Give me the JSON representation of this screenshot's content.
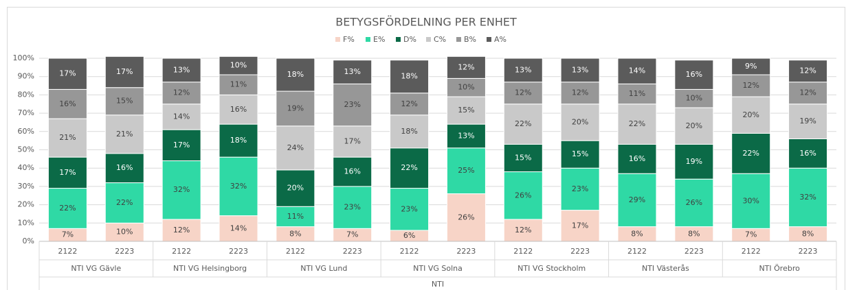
{
  "chart_data": {
    "type": "stacked_bar",
    "title": "BETYGSFÖRDELNING PER ENHET",
    "categories": [
      "2122",
      "2223",
      "2122",
      "2223",
      "2122",
      "2223",
      "2122",
      "2223",
      "2122",
      "2223",
      "2122",
      "2223",
      "2122",
      "2223"
    ],
    "groups": [
      "NTI VG Gävle",
      "NTI VG Helsingborg",
      "NTI VG Lund",
      "NTI VG Solna",
      "NTI VG Stockholm",
      "NTI Västerås",
      "NTI Örebro"
    ],
    "supergroup": "NTI",
    "series": [
      {
        "name": "F%",
        "color": "#f7d4c7",
        "values": [
          7,
          10,
          12,
          14,
          8,
          7,
          6,
          26,
          12,
          17,
          8,
          8,
          7,
          8
        ],
        "value_labels": [
          "7%",
          "10%",
          "12%",
          "14%",
          "8%",
          "7%",
          "6%",
          "26%",
          "12%",
          "17%",
          "8%",
          "8%",
          "7%",
          "8%"
        ]
      },
      {
        "name": "E%",
        "color": "#2fd9a5",
        "values": [
          22,
          22,
          32,
          32,
          11,
          23,
          23,
          25,
          26,
          23,
          29,
          26,
          30,
          32
        ],
        "value_labels": [
          "22%",
          "22%",
          "32%",
          "32%",
          "11%",
          "23%",
          "23%",
          "25%",
          "26%",
          "23%",
          "29%",
          "26%",
          "30%",
          "32%"
        ]
      },
      {
        "name": "D%",
        "color": "#0b6a47",
        "values": [
          17,
          16,
          17,
          18,
          20,
          16,
          22,
          13,
          15,
          15,
          16,
          19,
          22,
          16
        ],
        "value_labels": [
          "17%",
          "16%",
          "17%",
          "18%",
          "20%",
          "16%",
          "22%",
          "13%",
          "15%",
          "15%",
          "16%",
          "19%",
          "22%",
          "16%"
        ]
      },
      {
        "name": "C%",
        "color": "#c9c9c9",
        "values": [
          21,
          21,
          14,
          16,
          24,
          17,
          18,
          15,
          22,
          20,
          22,
          20,
          20,
          19
        ],
        "value_labels": [
          "21%",
          "21%",
          "14%",
          "16%",
          "24%",
          "17%",
          "18%",
          "15%",
          "22%",
          "20%",
          "22%",
          "20%",
          "20%",
          "19%"
        ]
      },
      {
        "name": "B%",
        "color": "#979797",
        "values": [
          16,
          15,
          12,
          11,
          19,
          23,
          12,
          10,
          12,
          12,
          11,
          10,
          12,
          12
        ],
        "value_labels": [
          "16%",
          "15%",
          "12%",
          "11%",
          "19%",
          "23%",
          "12%",
          "10%",
          "12%",
          "12%",
          "11%",
          "10%",
          "12%",
          "12%"
        ]
      },
      {
        "name": "A%",
        "color": "#5b5b5b",
        "values": [
          17,
          17,
          13,
          10,
          18,
          13,
          18,
          12,
          13,
          13,
          14,
          16,
          9,
          12
        ],
        "value_labels": [
          "17%",
          "17%",
          "13%",
          "10%",
          "18%",
          "13%",
          "18%",
          "12%",
          "13%",
          "13%",
          "14%",
          "16%",
          "9%",
          "12%"
        ]
      }
    ],
    "ylim": [
      0,
      100
    ],
    "yticks": [
      {
        "value": 0,
        "label": "0%"
      },
      {
        "value": 10,
        "label": "10%"
      },
      {
        "value": 20,
        "label": "20%"
      },
      {
        "value": 30,
        "label": "30%"
      },
      {
        "value": 40,
        "label": "40%"
      },
      {
        "value": 50,
        "label": "50%"
      },
      {
        "value": 60,
        "label": "60%"
      },
      {
        "value": 70,
        "label": "70%"
      },
      {
        "value": 80,
        "label": "80%"
      },
      {
        "value": 90,
        "label": "90%"
      },
      {
        "value": 100,
        "label": "100%"
      }
    ],
    "grid": true,
    "legend": "top"
  }
}
